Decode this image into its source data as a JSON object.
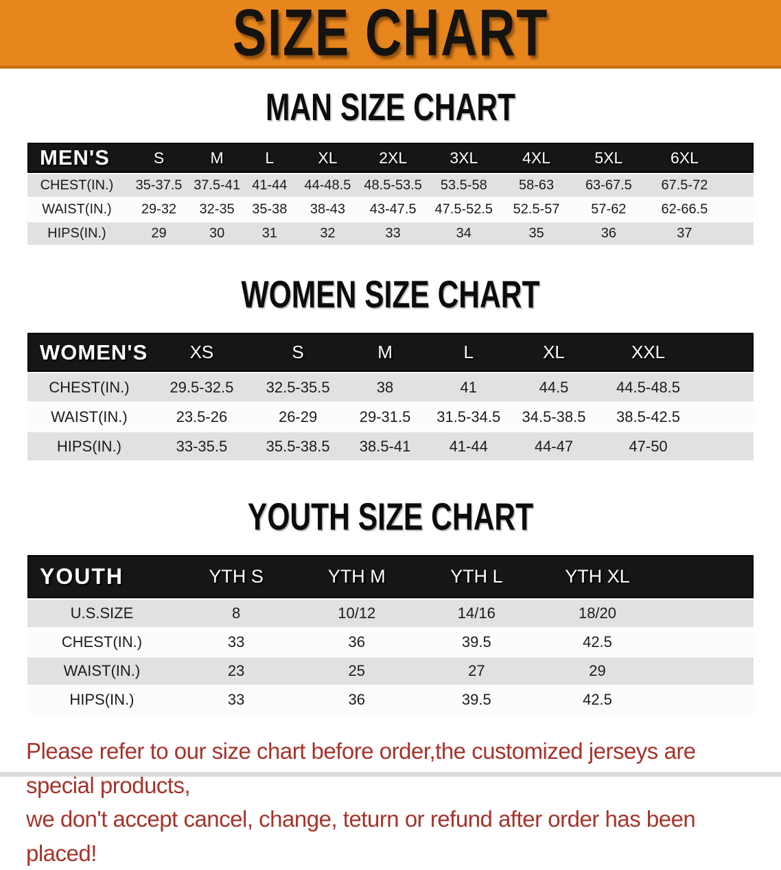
{
  "colors": {
    "banner_bg": "#E8861E",
    "bar_color": "#161616",
    "row_gray": "#E1E1E1",
    "note_color": "#A5332B"
  },
  "banner": {
    "title": "SIZE CHART"
  },
  "sections": [
    {
      "heading": "MAN SIZE CHART",
      "table": {
        "header": [
          "MEN'S",
          "S",
          "M",
          "L",
          "XL",
          "2XL",
          "3XL",
          "4XL",
          "5XL",
          "6XL"
        ],
        "rows": [
          {
            "label": "CHEST(IN.)",
            "values": [
              "35-37.5",
              "37.5-41",
              "41-44",
              "44-48.5",
              "48.5-53.5",
              "53.5-58",
              "58-63",
              "63-67.5",
              "67.5-72"
            ]
          },
          {
            "label": "WAIST(IN.)",
            "values": [
              "29-32",
              "32-35",
              "35-38",
              "38-43",
              "43-47.5",
              "47.5-52.5",
              "52.5-57",
              "57-62",
              "62-66.5"
            ]
          },
          {
            "label": "HIPS(IN.)",
            "values": [
              "29",
              "30",
              "31",
              "32",
              "33",
              "34",
              "35",
              "36",
              "37"
            ]
          }
        ]
      }
    },
    {
      "heading": "WOMEN SIZE CHART",
      "table": {
        "header": [
          "WOMEN'S",
          "XS",
          "S",
          "M",
          "L",
          "XL",
          "XXL"
        ],
        "rows": [
          {
            "label": "CHEST(IN.)",
            "values": [
              "29.5-32.5",
              "32.5-35.5",
              "38",
              "41",
              "44.5",
              "44.5-48.5"
            ]
          },
          {
            "label": "WAIST(IN.)",
            "values": [
              "23.5-26",
              "26-29",
              "29-31.5",
              "31.5-34.5",
              "34.5-38.5",
              "38.5-42.5"
            ]
          },
          {
            "label": "HIPS(IN.)",
            "values": [
              "33-35.5",
              "35.5-38.5",
              "38.5-41",
              "41-44",
              "44-47",
              "47-50"
            ]
          }
        ]
      }
    },
    {
      "heading": "YOUTH SIZE CHART",
      "table": {
        "header": [
          "YOUTH",
          "YTH S",
          "YTH M",
          "YTH L",
          "YTH XL"
        ],
        "rows": [
          {
            "label": "U.S.SIZE",
            "values": [
              "8",
              "10/12",
              "14/16",
              "18/20"
            ]
          },
          {
            "label": "CHEST(IN.)",
            "values": [
              "33",
              "36",
              "39.5",
              "42.5"
            ]
          },
          {
            "label": "WAIST(IN.)",
            "values": [
              "23",
              "25",
              "27",
              "29"
            ]
          },
          {
            "label": "HIPS(IN.)",
            "values": [
              "33",
              "36",
              "39.5",
              "42.5"
            ]
          }
        ]
      }
    }
  ],
  "note": {
    "line1": "Please refer to our size chart before order,the customized jerseys are special products,",
    "line2": "we don't accept cancel, change, teturn or refund after order has been placed!"
  }
}
